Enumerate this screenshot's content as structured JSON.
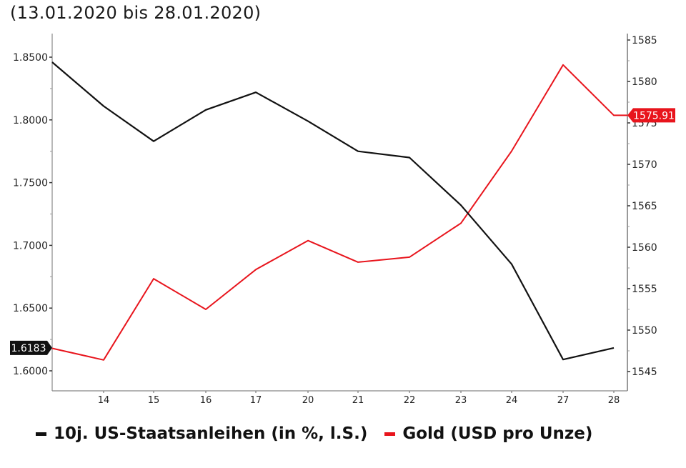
{
  "subtitle": "(13.01.2020 bis 28.01.2020)",
  "colors": {
    "yield": "#111111",
    "gold": "#e8141c"
  },
  "legend": {
    "yield_label": "10j. US-Staatsanleihen (in %, l.S.)",
    "gold_label": "Gold (USD pro Unze)"
  },
  "labels": {
    "last_yield": "1.6183",
    "last_gold": "1575.91"
  },
  "axis": {
    "left_ticks": [
      "1.8500",
      "1.8000",
      "1.7500",
      "1.7000",
      "1.6500",
      "1.6000"
    ],
    "right_ticks": [
      "1585",
      "1580",
      "1575",
      "1570",
      "1565",
      "1560",
      "1555",
      "1550",
      "1545"
    ],
    "x_ticks": [
      "14",
      "15",
      "16",
      "17",
      "20",
      "21",
      "22",
      "23",
      "24",
      "27",
      "28"
    ]
  },
  "chart_data": {
    "type": "line",
    "title": "(13.01.2020 bis 28.01.2020)",
    "x": [
      "13",
      "14",
      "15",
      "16",
      "17",
      "20",
      "21",
      "22",
      "23",
      "24",
      "27",
      "28"
    ],
    "series": [
      {
        "name": "10j. US-Staatsanleihen (in %, l.S.)",
        "axis": "left",
        "color": "#111111",
        "values": [
          1.846,
          1.811,
          1.783,
          1.808,
          1.822,
          1.799,
          1.775,
          1.77,
          1.732,
          1.685,
          1.609,
          1.6183
        ]
      },
      {
        "name": "Gold (USD pro Unze)",
        "axis": "right",
        "color": "#e8141c",
        "values": [
          1547.8,
          1546.4,
          1556.2,
          1552.5,
          1557.3,
          1560.8,
          1558.2,
          1558.8,
          1562.9,
          1571.6,
          1582.0,
          1575.91
        ]
      }
    ],
    "ylim_left": [
      1.59,
      1.87
    ],
    "ylim_right": [
      1544,
      1586
    ],
    "ylabel_left": "%",
    "ylabel_right": "USD",
    "xlabel": "",
    "grid": false,
    "legend_position": "bottom"
  }
}
